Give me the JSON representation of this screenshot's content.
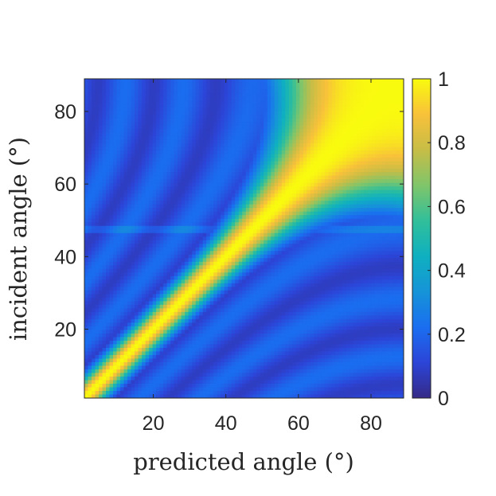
{
  "chart_data": {
    "type": "heatmap",
    "title": "",
    "xlabel": "predicted angle (°)",
    "ylabel": "incident angle (°)",
    "xlim": [
      1,
      89
    ],
    "ylim": [
      1,
      89
    ],
    "x_ticks": [
      20,
      40,
      60,
      80
    ],
    "y_ticks": [
      20,
      40,
      60,
      80
    ],
    "x_tick_labels": [
      "20",
      "40",
      "60",
      "80"
    ],
    "y_tick_labels": [
      "20",
      "40",
      "60",
      "80"
    ],
    "colorbar": {
      "limits": [
        0,
        1
      ],
      "ticks": [
        0,
        0.2,
        0.4,
        0.6,
        0.8,
        1
      ],
      "tick_labels": [
        "0",
        "0.2",
        "0.4",
        "0.6",
        "0.8",
        "1"
      ],
      "colormap": "parula",
      "colors": [
        "#352a87",
        "#2c45d8",
        "#1a6ef0",
        "#1694d8",
        "#0fb0c0",
        "#31bf9a",
        "#80c56a",
        "#c7bd46",
        "#f8c13a",
        "#f9fb0e"
      ]
    },
    "grid": false,
    "description_of_values": "Correlation between incident and predicted angle; peak value 1 along the diagonal, widening to a plateau of 1 above 70° in both axes; low off-diagonal values with dark ripple bands; a horizontal discontinuity near incident angle 47°.",
    "diagonal_peak": 1,
    "background_level": 0.15,
    "discontinuity_y": 47
  }
}
